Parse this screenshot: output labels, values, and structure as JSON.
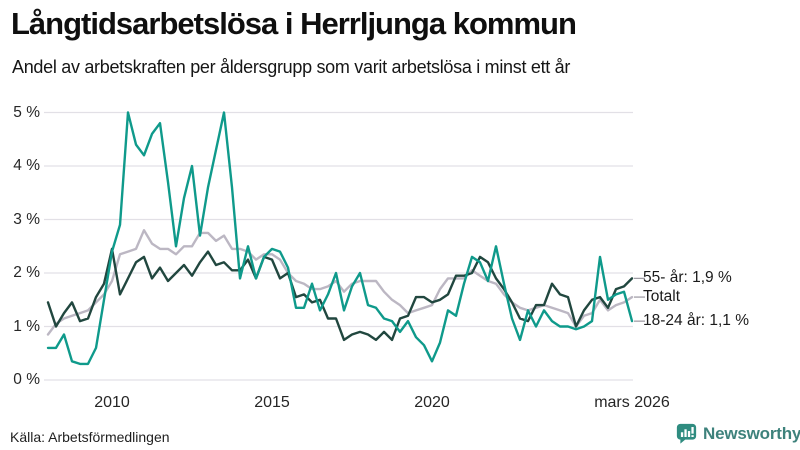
{
  "title": "Långtidsarbetslösa i Herrljunga kommun",
  "subtitle": "Andel av arbetskraften per åldersgrupp som varit arbetslösa i minst ett år",
  "source": "Källa: Arbetsförmedlingen",
  "branding": {
    "name": "Newsworthy",
    "icon": "bar-chart-speech-bubble-icon",
    "color": "#3e827c",
    "icon_color": "#2f8c80"
  },
  "colors": {
    "teal_line": "#0f9a8b",
    "dark_teal_line": "#21473f",
    "gray_line": "#bcb7c3",
    "grid": "#e2e0e6",
    "connector": "#9a97a0",
    "text": "#1c1c1c"
  },
  "chart_data": {
    "type": "line",
    "title": "Långtidsarbetslösa i Herrljunga kommun",
    "xlabel": "",
    "ylabel": "",
    "x_unit": "decimal_year",
    "xlim": [
      2008.0,
      2026.25
    ],
    "ylim": [
      0,
      5
    ],
    "grid": true,
    "legend_position": "right-end-labels",
    "yticks": [
      "0 %",
      "1 %",
      "2 %",
      "3 %",
      "4 %",
      "5 %"
    ],
    "xticks": [
      {
        "x": 2010,
        "label": "2010"
      },
      {
        "x": 2015,
        "label": "2015"
      },
      {
        "x": 2020,
        "label": "2020"
      },
      {
        "x": 2026.25,
        "label": "mars 2026"
      }
    ],
    "x": [
      2008.0,
      2008.25,
      2008.5,
      2008.75,
      2009.0,
      2009.25,
      2009.5,
      2009.75,
      2010.0,
      2010.25,
      2010.5,
      2010.75,
      2011.0,
      2011.25,
      2011.5,
      2011.75,
      2012.0,
      2012.25,
      2012.5,
      2012.75,
      2013.0,
      2013.25,
      2013.5,
      2013.75,
      2014.0,
      2014.25,
      2014.5,
      2014.75,
      2015.0,
      2015.25,
      2015.5,
      2015.75,
      2016.0,
      2016.25,
      2016.5,
      2016.75,
      2017.0,
      2017.25,
      2017.5,
      2017.75,
      2018.0,
      2018.25,
      2018.5,
      2018.75,
      2019.0,
      2019.25,
      2019.5,
      2019.75,
      2020.0,
      2020.25,
      2020.5,
      2020.75,
      2021.0,
      2021.25,
      2021.5,
      2021.75,
      2022.0,
      2022.25,
      2022.5,
      2022.75,
      2023.0,
      2023.25,
      2023.5,
      2023.75,
      2024.0,
      2024.25,
      2024.5,
      2024.75,
      2025.0,
      2025.25,
      2025.5,
      2025.75,
      2026.0,
      2026.25
    ],
    "series": [
      {
        "name": "Totalt",
        "end_label": "Totalt",
        "end_value": 1.55,
        "color": "#bcb7c3",
        "values": [
          0.85,
          1.05,
          1.15,
          1.2,
          1.25,
          1.3,
          1.45,
          1.6,
          1.85,
          2.35,
          2.4,
          2.45,
          2.8,
          2.55,
          2.45,
          2.45,
          2.35,
          2.5,
          2.5,
          2.75,
          2.75,
          2.6,
          2.7,
          2.45,
          2.45,
          2.4,
          2.25,
          2.35,
          2.35,
          2.25,
          2.0,
          1.85,
          1.8,
          1.7,
          1.7,
          1.75,
          1.85,
          1.65,
          1.8,
          1.85,
          1.85,
          1.85,
          1.65,
          1.5,
          1.4,
          1.25,
          1.3,
          1.35,
          1.4,
          1.7,
          1.9,
          1.9,
          1.9,
          2.05,
          1.95,
          1.85,
          1.8,
          1.6,
          1.45,
          1.35,
          1.3,
          1.35,
          1.4,
          1.35,
          1.3,
          1.25,
          1.0,
          1.2,
          1.25,
          1.5,
          1.3,
          1.4,
          1.45,
          1.55
        ]
      },
      {
        "name": "55- år",
        "end_label": "55- år: 1,9 %",
        "end_value": 1.9,
        "color": "#21473f",
        "values": [
          1.45,
          1.0,
          1.25,
          1.45,
          1.1,
          1.15,
          1.55,
          1.8,
          2.45,
          1.6,
          1.9,
          2.2,
          2.3,
          1.9,
          2.1,
          1.85,
          2.0,
          2.15,
          1.95,
          2.2,
          2.4,
          2.15,
          2.2,
          2.05,
          2.05,
          2.25,
          1.9,
          2.3,
          2.25,
          1.9,
          2.0,
          1.55,
          1.6,
          1.45,
          1.5,
          1.15,
          1.15,
          0.75,
          0.85,
          0.9,
          0.85,
          0.75,
          0.9,
          0.75,
          1.15,
          1.2,
          1.55,
          1.55,
          1.45,
          1.5,
          1.6,
          1.95,
          1.95,
          2.0,
          2.3,
          2.2,
          1.9,
          1.7,
          1.45,
          1.15,
          1.1,
          1.4,
          1.4,
          1.8,
          1.6,
          1.55,
          1.0,
          1.3,
          1.5,
          1.55,
          1.35,
          1.7,
          1.75,
          1.9
        ]
      },
      {
        "name": "18-24 år",
        "end_label": "18-24 år: 1,1 %",
        "end_value": 1.1,
        "color": "#0f9a8b",
        "values": [
          0.6,
          0.6,
          0.85,
          0.35,
          0.3,
          0.3,
          0.6,
          1.5,
          2.4,
          2.9,
          5.0,
          4.4,
          4.2,
          4.6,
          4.8,
          3.7,
          2.5,
          3.4,
          4.0,
          2.7,
          3.6,
          4.3,
          5.0,
          3.6,
          1.9,
          2.5,
          1.9,
          2.3,
          2.45,
          2.4,
          2.1,
          1.35,
          1.35,
          1.8,
          1.3,
          1.6,
          2.0,
          1.3,
          1.75,
          2.0,
          1.4,
          1.35,
          1.15,
          1.1,
          0.9,
          1.1,
          0.8,
          0.65,
          0.35,
          0.7,
          1.3,
          1.2,
          1.8,
          2.3,
          2.2,
          1.85,
          2.5,
          1.8,
          1.15,
          0.75,
          1.3,
          1.0,
          1.3,
          1.1,
          1.0,
          1.0,
          0.95,
          1.0,
          1.1,
          2.3,
          1.5,
          1.6,
          1.65,
          1.1
        ]
      }
    ]
  }
}
